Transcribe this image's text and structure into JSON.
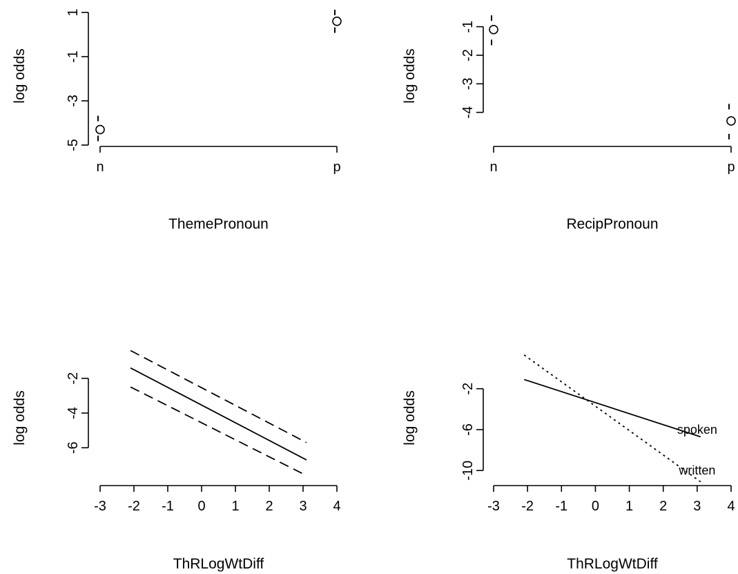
{
  "chart_data": [
    {
      "type": "scatter",
      "ylabel": "log odds",
      "xlabel": "ThemePronoun",
      "categories": [
        "n",
        "p"
      ],
      "y_ticks": [
        1,
        -1,
        -3,
        -5
      ],
      "y_tick_labels": [
        "1",
        "-1",
        "-3",
        "-5"
      ],
      "ylim": [
        -5,
        1
      ],
      "points": [
        {
          "category": "n",
          "estimate": -4.3,
          "lower": -4.7,
          "upper": -3.8
        },
        {
          "category": "p",
          "estimate": 0.6,
          "lower": 0.2,
          "upper": 1.0
        }
      ]
    },
    {
      "type": "scatter",
      "ylabel": "log odds",
      "xlabel": "RecipPronoun",
      "categories": [
        "n",
        "p"
      ],
      "y_ticks": [
        -1,
        -2,
        -3,
        -4
      ],
      "y_tick_labels": [
        "-1",
        "-2",
        "-3",
        "-4"
      ],
      "ylim": [
        -5,
        -0.5
      ],
      "points": [
        {
          "category": "n",
          "estimate": -1.1,
          "lower": -1.55,
          "upper": -0.7
        },
        {
          "category": "p",
          "estimate": -4.3,
          "lower": -4.85,
          "upper": -3.8
        }
      ]
    },
    {
      "type": "line",
      "ylabel": "log odds",
      "xlabel": "ThRLogWtDiff",
      "x_ticks": [
        -3,
        -2,
        -1,
        0,
        1,
        2,
        3,
        4
      ],
      "x_tick_labels": [
        "-3",
        "-2",
        "-1",
        "0",
        "1",
        "2",
        "3",
        "4"
      ],
      "y_ticks": [
        -2,
        -4,
        -6
      ],
      "y_tick_labels": [
        "-2",
        "-4",
        "-6"
      ],
      "xlim": [
        -3,
        4
      ],
      "ylim": [
        -7.9,
        -0.3
      ],
      "series": [
        {
          "style": "solid",
          "x": [
            -2.1,
            3.1
          ],
          "y": [
            -1.4,
            -6.7
          ]
        },
        {
          "style": "dashed",
          "x": [
            -2.1,
            3.1
          ],
          "y": [
            -0.4,
            -5.7
          ]
        },
        {
          "style": "dashed",
          "x": [
            -2.1,
            3.1
          ],
          "y": [
            -2.5,
            -7.6
          ]
        }
      ]
    },
    {
      "type": "line",
      "ylabel": "log odds",
      "xlabel": "ThRLogWtDiff",
      "x_ticks": [
        -3,
        -2,
        -1,
        0,
        1,
        2,
        3,
        4
      ],
      "x_tick_labels": [
        "-3",
        "-2",
        "-1",
        "0",
        "1",
        "2",
        "3",
        "4"
      ],
      "y_ticks": [
        -2,
        -6,
        -10
      ],
      "y_tick_labels": [
        "-2",
        "-6",
        "-10"
      ],
      "xlim": [
        -3,
        4
      ],
      "ylim": [
        -11,
        1.9
      ],
      "series": [
        {
          "name": "spoken",
          "style": "solid",
          "x": [
            -2.1,
            3.1
          ],
          "y": [
            -1.1,
            -6.7
          ]
        },
        {
          "name": "written",
          "style": "dotted",
          "x": [
            -2.1,
            3.1
          ],
          "y": [
            1.3,
            -11.1
          ]
        }
      ],
      "line_labels": [
        {
          "text": "spoken",
          "x": 3.0,
          "y": -6.0
        },
        {
          "text": "written",
          "x": 3.0,
          "y": -10.0
        }
      ]
    }
  ]
}
